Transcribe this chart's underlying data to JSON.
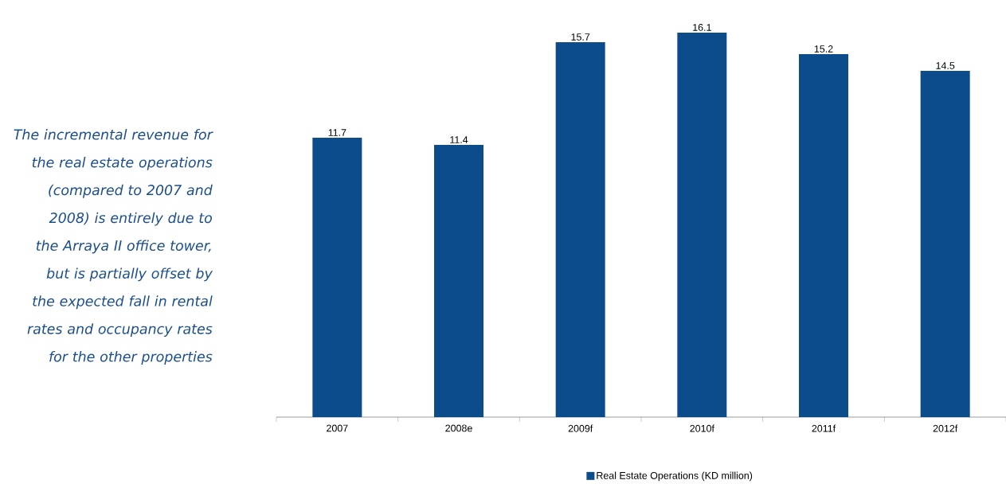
{
  "chart_data": {
    "type": "bar",
    "categories": [
      "2007",
      "2008e",
      "2009f",
      "2010f",
      "2011f",
      "2012f"
    ],
    "series": [
      {
        "name": "Real Estate Operations (KD million)",
        "color": "#0d4c8b",
        "values": [
          11.7,
          11.4,
          15.7,
          16.1,
          15.2,
          14.5
        ]
      }
    ],
    "data_labels": true,
    "legend": "bottom",
    "annotations": [
      "The incremental revenue for the real estate operations (compared to 2007 and 2008) is entirely due to the Arraya II office tower, but is partially offset by the expected fall in rental rates and occupancy rates for the other properties"
    ]
  }
}
